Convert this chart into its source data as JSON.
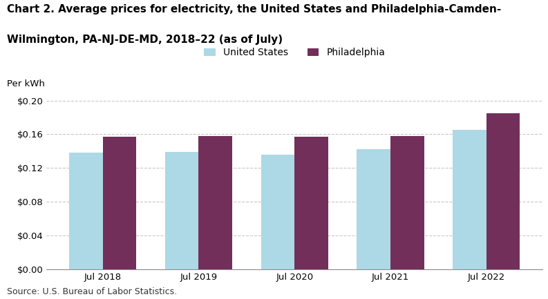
{
  "categories": [
    "Jul 2018",
    "Jul 2019",
    "Jul 2020",
    "Jul 2021",
    "Jul 2022"
  ],
  "us_values": [
    0.138,
    0.139,
    0.136,
    0.142,
    0.165
  ],
  "philly_values": [
    0.157,
    0.158,
    0.157,
    0.158,
    0.185
  ],
  "us_color": "#ADD8E6",
  "philly_color": "#722F5A",
  "us_label": "United States",
  "philly_label": "Philadelphia",
  "ylabel": "Per kWh",
  "ylim": [
    0,
    0.22
  ],
  "yticks": [
    0.0,
    0.04,
    0.08,
    0.12,
    0.16,
    0.2
  ],
  "title_line1": "Chart 2. Average prices for electricity, the United States and Philadelphia-Camden-",
  "title_line2": "Wilmington, PA-NJ-DE-MD, 2018–22 (as of July)",
  "source": "Source: U.S. Bureau of Labor Statistics.",
  "background_color": "#ffffff",
  "grid_color": "#c8c8c8",
  "bar_width": 0.35,
  "title_fontsize": 11,
  "axis_fontsize": 9.5,
  "tick_fontsize": 9.5,
  "legend_fontsize": 10,
  "source_fontsize": 9
}
